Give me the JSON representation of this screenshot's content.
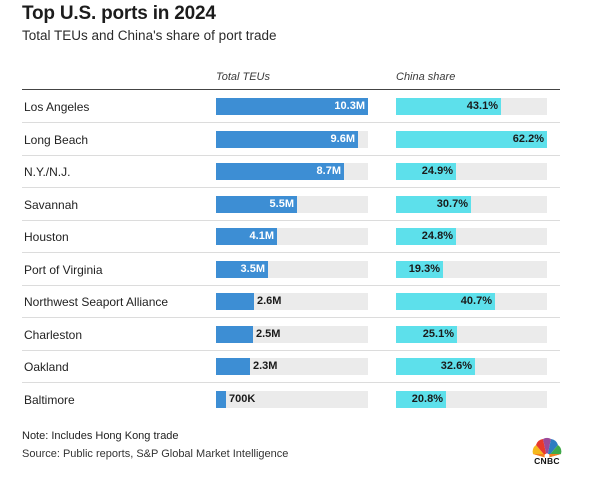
{
  "title": "Top U.S. ports in 2024",
  "subtitle": "Total TEUs and China's share of port trade",
  "columns": {
    "teu": "Total TEUs",
    "china": "China share"
  },
  "note": "Note: Includes Hong Kong trade",
  "source": "Source: Public reports, S&P Global Market Intelligence",
  "logo": {
    "text": "CNBC",
    "icon": "cnbc-peacock-icon"
  },
  "colors": {
    "teu": "#3d8ed4",
    "china": "#5de0eb",
    "track": "#ebebeb"
  },
  "chart_data": {
    "type": "bar",
    "categories": [
      "Los Angeles",
      "Long Beach",
      "N.Y./N.J.",
      "Savannah",
      "Houston",
      "Port of Virginia",
      "Northwest Seaport Alliance",
      "Charleston",
      "Oakland",
      "Baltimore"
    ],
    "teu_max": 10.3,
    "china_max": 62.2,
    "series": [
      {
        "name": "Total TEUs",
        "values": [
          10.3,
          9.6,
          8.7,
          5.5,
          4.1,
          3.5,
          2.6,
          2.5,
          2.3,
          0.7
        ],
        "labels": [
          "10.3M",
          "9.6M",
          "8.7M",
          "5.5M",
          "4.1M",
          "3.5M",
          "2.6M",
          "2.5M",
          "2.3M",
          "700K"
        ]
      },
      {
        "name": "China share",
        "values": [
          43.1,
          62.2,
          24.9,
          30.7,
          24.8,
          19.3,
          40.7,
          25.1,
          32.6,
          20.8
        ],
        "labels": [
          "43.1%",
          "62.2%",
          "24.9%",
          "30.7%",
          "24.8%",
          "19.3%",
          "40.7%",
          "25.1%",
          "32.6%",
          "20.8%"
        ]
      }
    ]
  }
}
